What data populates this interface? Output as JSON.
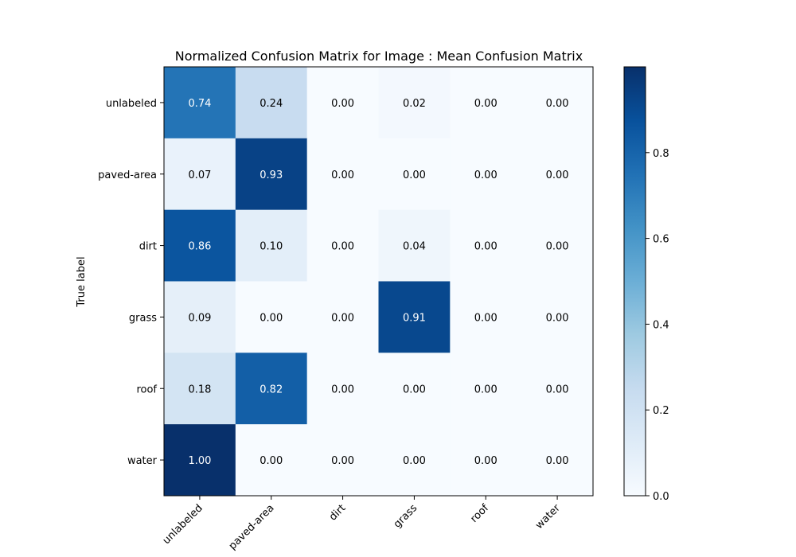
{
  "chart_data": {
    "type": "heatmap",
    "title": "Normalized Confusion Matrix for Image : Mean Confusion Matrix",
    "xlabel": "",
    "ylabel": "True label",
    "x_categories": [
      "unlabeled",
      "paved-area",
      "dirt",
      "grass",
      "roof",
      "water"
    ],
    "y_categories": [
      "unlabeled",
      "paved-area",
      "dirt",
      "grass",
      "roof",
      "water"
    ],
    "values": [
      [
        0.74,
        0.24,
        0.0,
        0.02,
        0.0,
        0.0
      ],
      [
        0.07,
        0.93,
        0.0,
        0.0,
        0.0,
        0.0
      ],
      [
        0.86,
        0.1,
        0.0,
        0.04,
        0.0,
        0.0
      ],
      [
        0.09,
        0.0,
        0.0,
        0.91,
        0.0,
        0.0
      ],
      [
        0.18,
        0.82,
        0.0,
        0.0,
        0.0,
        0.0
      ],
      [
        1.0,
        0.0,
        0.0,
        0.0,
        0.0,
        0.0
      ]
    ],
    "colormap": "Blues",
    "colorbar": {
      "range": [
        0.0,
        1.0
      ],
      "ticks": [
        0.0,
        0.2,
        0.4,
        0.6,
        0.8
      ],
      "tick_labels": [
        "0.0",
        "0.2",
        "0.4",
        "0.6",
        "0.8"
      ]
    },
    "value_format": "2 decimals",
    "grid": false
  }
}
